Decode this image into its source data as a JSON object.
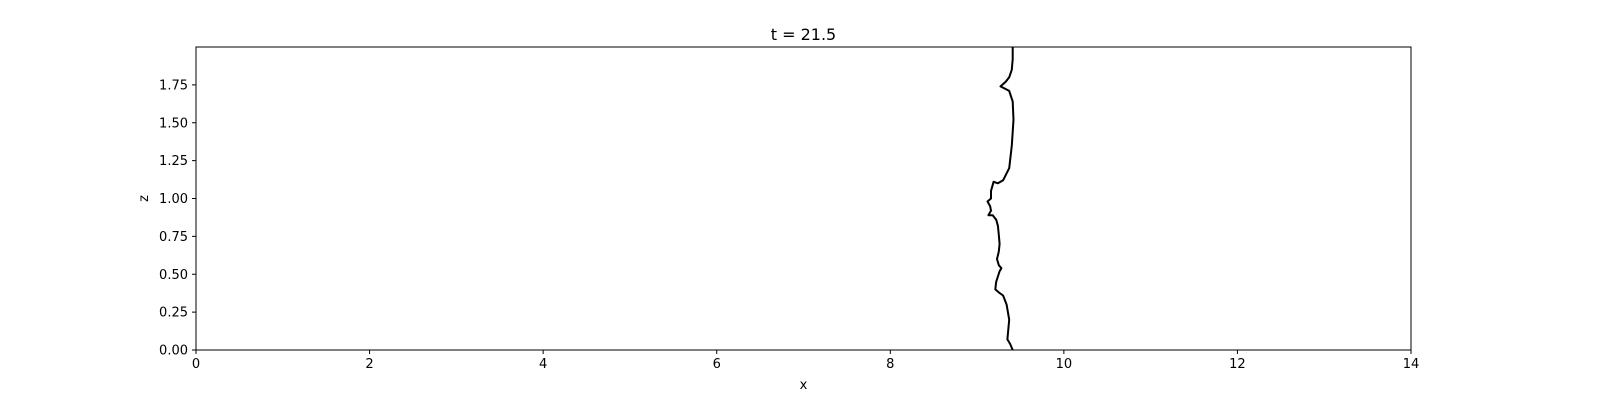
{
  "chart_data": {
    "type": "line",
    "title": "t = 21.5",
    "xlabel": "x",
    "ylabel": "z",
    "xlim": [
      0,
      14
    ],
    "ylim": [
      0,
      2
    ],
    "x_ticks": [
      0,
      2,
      4,
      6,
      8,
      10,
      12,
      14
    ],
    "x_tick_labels": [
      "0",
      "2",
      "4",
      "6",
      "8",
      "10",
      "12",
      "14"
    ],
    "y_ticks": [
      0.0,
      0.25,
      0.5,
      0.75,
      1.0,
      1.25,
      1.5,
      1.75
    ],
    "y_tick_labels": [
      "0.00",
      "0.25",
      "0.50",
      "0.75",
      "1.00",
      "1.25",
      "1.50",
      "1.75"
    ],
    "grid": false,
    "line_color": "#000000",
    "series": [
      {
        "x": [
          9.41,
          9.38,
          9.35,
          9.37,
          9.34,
          9.3,
          9.25,
          9.21,
          9.22,
          9.26,
          9.28,
          9.25,
          9.23,
          9.25,
          9.26,
          9.25,
          9.24,
          9.22,
          9.18,
          9.13,
          9.16,
          9.15,
          9.12,
          9.16,
          9.16,
          9.19,
          9.24,
          9.3,
          9.37,
          9.4,
          9.42,
          9.41,
          9.37,
          9.27,
          9.33,
          9.37,
          9.4,
          9.41,
          9.41
        ],
        "y": [
          0.0,
          0.04,
          0.07,
          0.2,
          0.3,
          0.36,
          0.38,
          0.4,
          0.45,
          0.52,
          0.54,
          0.56,
          0.6,
          0.65,
          0.7,
          0.76,
          0.82,
          0.86,
          0.89,
          0.89,
          0.92,
          0.95,
          0.98,
          1.0,
          1.05,
          1.11,
          1.1,
          1.12,
          1.2,
          1.35,
          1.52,
          1.64,
          1.71,
          1.74,
          1.77,
          1.8,
          1.85,
          1.92,
          2.0
        ]
      }
    ]
  }
}
